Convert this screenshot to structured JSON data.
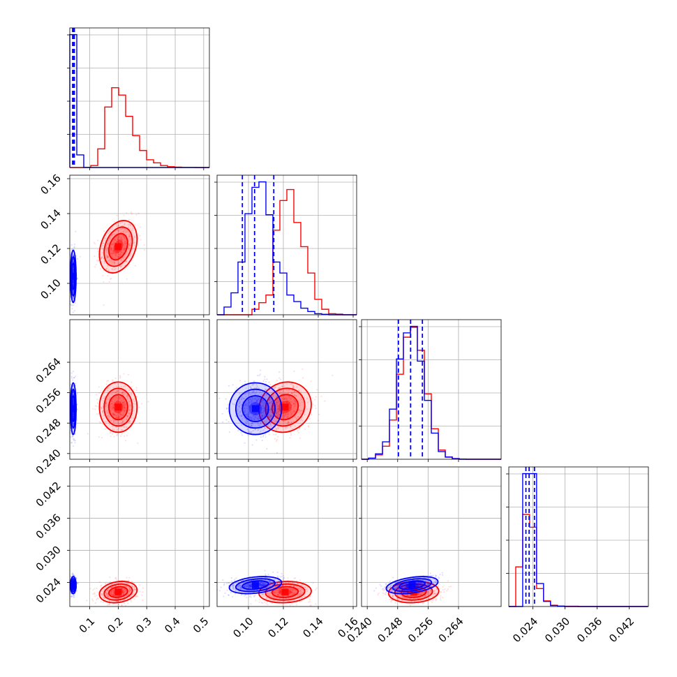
{
  "chart_data": {
    "type": "corner",
    "title": "",
    "grid": true,
    "legend": "none",
    "parameters": [
      {
        "index": 0,
        "range": [
          0.03,
          0.52
        ],
        "ticks": [
          0.1,
          0.2,
          0.3,
          0.4,
          0.5
        ],
        "tick_labels": [
          "0.1",
          "0.2",
          "0.3",
          "0.4",
          "0.5"
        ]
      },
      {
        "index": 1,
        "range": [
          0.082,
          0.162
        ],
        "ticks": [
          0.1,
          0.12,
          0.14,
          0.16
        ],
        "tick_labels": [
          "0.10",
          "0.12",
          "0.14",
          "0.16"
        ]
      },
      {
        "index": 2,
        "range": [
          0.2385,
          0.2752
        ],
        "ticks": [
          0.24,
          0.248,
          0.256,
          0.264
        ],
        "tick_labels": [
          "0.240",
          "0.248",
          "0.256",
          "0.264"
        ]
      },
      {
        "index": 3,
        "range": [
          0.0195,
          0.0456
        ],
        "ticks": [
          0.024,
          0.03,
          0.036,
          0.042
        ],
        "tick_labels": [
          "0.024",
          "0.030",
          "0.036",
          "0.042"
        ]
      }
    ],
    "series": [
      {
        "color": "#ff0000",
        "means": [
          0.2,
          0.121,
          0.2522,
          0.0222
        ],
        "sigmas": [
          0.033,
          0.0075,
          0.0033,
          0.001
        ],
        "correlations": {
          "0-1": 0.3,
          "0-2": 0.0,
          "0-3": 0.2,
          "1-2": 0.1,
          "1-3": 0.1,
          "2-3": 0.1
        },
        "histograms": [
          {
            "edges": [
              0.03,
              0.0545,
              0.079,
              0.1035,
              0.128,
              0.1525,
              0.177,
              0.2015,
              0.226,
              0.2505,
              0.275,
              0.2995,
              0.324,
              0.3485,
              0.373,
              0.3975,
              0.422,
              0.4465,
              0.471,
              0.4955,
              0.52
            ],
            "counts": [
              0,
              0,
              1,
              15,
              140,
              455,
              600,
              545,
              385,
              240,
              128,
              58,
              35,
              15,
              6,
              3,
              1,
              1,
              0,
              0
            ]
          },
          {
            "edges": [
              0.082,
              0.086,
              0.09,
              0.094,
              0.098,
              0.102,
              0.106,
              0.11,
              0.114,
              0.118,
              0.122,
              0.126,
              0.13,
              0.134,
              0.138,
              0.142,
              0.146,
              0.15,
              0.154,
              0.158,
              0.162
            ],
            "counts": [
              0,
              0,
              0,
              0,
              0,
              25,
              55,
              90,
              385,
              520,
              570,
              420,
              310,
              190,
              70,
              25,
              5,
              3,
              0,
              0
            ]
          },
          {
            "edges": [
              0.2385,
              0.24034,
              0.24217,
              0.24401,
              0.24584,
              0.24768,
              0.24951,
              0.25135,
              0.25318,
              0.25502,
              0.25685,
              0.25869,
              0.26052,
              0.26236,
              0.26419,
              0.26603,
              0.26786,
              0.2697,
              0.27153,
              0.27337,
              0.2752
            ],
            "counts": [
              0,
              5,
              20,
              60,
              180,
              390,
              560,
              605,
              500,
              300,
              140,
              42,
              10,
              3,
              1,
              0,
              0,
              0,
              0,
              0
            ]
          },
          {
            "edges": [
              0.0195,
              0.0208,
              0.0221,
              0.0234,
              0.0247,
              0.026,
              0.0273,
              0.0286,
              0.0299,
              0.0312,
              0.0325,
              0.0338,
              0.0351,
              0.0364,
              0.0377,
              0.039,
              0.0403,
              0.0416,
              0.0429,
              0.0442,
              0.0455
            ],
            "counts": [
              0,
              155,
              360,
              310,
              70,
              22,
              5,
              2,
              1,
              1,
              0,
              0,
              0,
              0,
              0,
              0,
              0,
              0,
              0,
              0
            ]
          }
        ]
      },
      {
        "color": "#0000ff",
        "means": [
          0.042,
          0.104,
          0.2518,
          0.0235
        ],
        "sigmas": [
          0.005,
          0.0075,
          0.0034,
          0.0008
        ],
        "correlations": {
          "0-1": 0.0,
          "0-2": 0.0,
          "0-3": 0.0,
          "1-2": 0.0,
          "1-3": 0.3,
          "2-3": 0.4
        },
        "quantiles": [
          [
            0.04,
            0.042,
            0.046
          ],
          [
            0.0965,
            0.1035,
            0.1145
          ],
          [
            0.2482,
            0.2514,
            0.2545
          ],
          [
            0.0227,
            0.0233,
            0.0243
          ]
        ],
        "histograms": [
          {
            "edges": [
              0.03,
              0.0545,
              0.079,
              0.1035,
              0.128,
              0.1525,
              0.177,
              0.2015,
              0.226,
              0.2505,
              0.275,
              0.2995,
              0.324,
              0.3485,
              0.373,
              0.3975,
              0.422,
              0.4465,
              0.471,
              0.4955,
              0.52
            ],
            "counts": [
              1000,
              95,
              0,
              0,
              0,
              0,
              0,
              0,
              0,
              0,
              0,
              0,
              0,
              0,
              0,
              0,
              0,
              0,
              0,
              0
            ]
          },
          {
            "edges": [
              0.082,
              0.086,
              0.09,
              0.094,
              0.098,
              0.102,
              0.106,
              0.11,
              0.114,
              0.118,
              0.122,
              0.126,
              0.13,
              0.134,
              0.138,
              0.142,
              0.146,
              0.15,
              0.154,
              0.158,
              0.162
            ],
            "counts": [
              0,
              35,
              100,
              240,
              460,
              580,
              605,
              455,
              240,
              190,
              90,
              60,
              30,
              15,
              5,
              2,
              0,
              0,
              0,
              0
            ]
          },
          {
            "edges": [
              0.2385,
              0.24034,
              0.24217,
              0.24401,
              0.24584,
              0.24768,
              0.24951,
              0.25135,
              0.25318,
              0.25502,
              0.25685,
              0.25869,
              0.26052,
              0.26236,
              0.26419,
              0.26603,
              0.26786,
              0.2697,
              0.27153,
              0.27337,
              0.2752
            ],
            "counts": [
              0,
              5,
              25,
              80,
              230,
              460,
              580,
              610,
              450,
              270,
              120,
              35,
              10,
              3,
              0,
              0,
              0,
              0,
              0,
              0
            ]
          },
          {
            "edges": [
              0.0195,
              0.0208,
              0.0221,
              0.0234,
              0.0247,
              0.026,
              0.0273,
              0.0286,
              0.0299,
              0.0312,
              0.0325,
              0.0338,
              0.0351,
              0.0364,
              0.0377,
              0.039,
              0.0403,
              0.0416,
              0.0429,
              0.0442,
              0.0455
            ],
            "counts": [
              0,
              0,
              520,
              520,
              90,
              20,
              4,
              1,
              0,
              0,
              0,
              0,
              0,
              0,
              0,
              0,
              0,
              0,
              0,
              0
            ]
          }
        ]
      }
    ],
    "contour_levels_sigma": [
      0.5,
      1.0,
      1.5,
      2.0
    ]
  }
}
